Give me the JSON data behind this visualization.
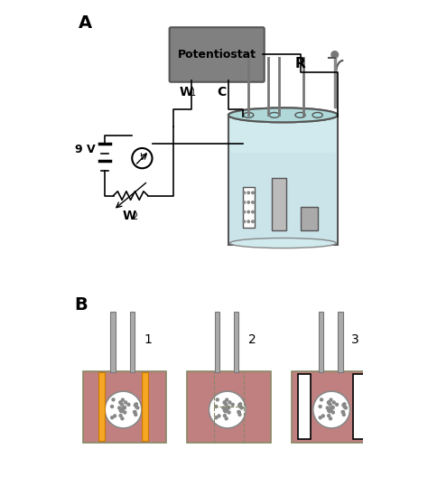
{
  "bg_color": "#ffffff",
  "label_A": "A",
  "label_B": "B",
  "potentiostat_color": "#808080",
  "potentiostat_label": "Potentiostat",
  "beaker_rim_color": "#b0d8d8",
  "beaker_body_color": "#d0eaee",
  "beaker_outline": "#555555",
  "liquid_color": "#c5e0e8",
  "wire_color": "#333333",
  "electrode_color": "#888888",
  "orange_color": "#f5a623",
  "pink_color": "#c08080",
  "pink_dark": "#a06060",
  "white_color": "#ffffff",
  "black_color": "#000000",
  "gray_rod": "#aaaaaa",
  "label_9V": "9 V",
  "label_W1": "W",
  "label_W1_sub": "1",
  "label_C": "C",
  "label_R": "R",
  "label_W2": "W",
  "label_W2_sub": "2",
  "num1": "1",
  "num2": "2",
  "num3": "3"
}
